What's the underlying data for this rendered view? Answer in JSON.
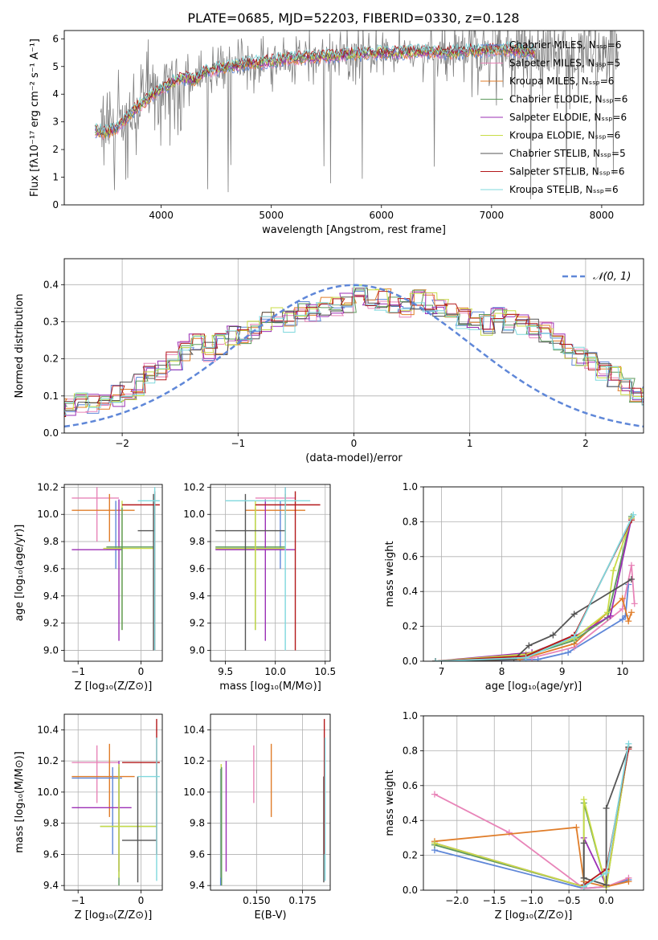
{
  "title": "PLATE=0685, MJD=52203, FIBERID=0330, z=0.128",
  "colors": {
    "Chabrier MILES": "#5f87d8",
    "Salpeter MILES": "#e884b8",
    "Kroupa MILES": "#e07d2a",
    "Chabrier ELODIE": "#5d9a5d",
    "Salpeter ELODIE": "#9b2fb5",
    "Kroupa ELODIE": "#c8dc46",
    "Chabrier STELIB": "#555555",
    "Salpeter STELIB": "#b3181a",
    "Kroupa STELIB": "#7fd8dd",
    "data": "#808080",
    "gauss": "#5f87d8"
  },
  "chart_data": [
    {
      "id": "spectrum",
      "type": "line",
      "xlabel": "wavelength [Angstrom, rest frame]",
      "ylabel": "Flux [fλ10⁻¹⁷ erg cm⁻² s⁻¹ A⁻¹]",
      "xlim": [
        3120,
        8380
      ],
      "ylim": [
        0,
        6.3
      ],
      "xticks": [
        4000,
        5000,
        6000,
        7000,
        8000
      ],
      "yticks": [
        0,
        1,
        2,
        3,
        4,
        5,
        6
      ],
      "grid": false,
      "legend": "top-right",
      "legend_entries": [
        "Chabrier MILES, Nₛₛₚ=6",
        "Salpeter MILES, Nₛₛₚ=5",
        "Kroupa MILES, Nₛₛₚ=6",
        "Chabrier ELODIE, Nₛₛₚ=6",
        "Salpeter ELODIE, Nₛₛₚ=6",
        "Kroupa ELODIE, Nₛₛₚ=6",
        "Chabrier STELIB, Nₛₛₚ=5",
        "Salpeter STELIB, Nₛₛₚ=6",
        "Kroupa STELIB, Nₛₛₚ=6"
      ],
      "legend_series": [
        "Chabrier MILES",
        "Salpeter MILES",
        "Kroupa MILES",
        "Chabrier ELODIE",
        "Salpeter ELODIE",
        "Kroupa ELODIE",
        "Chabrier STELIB",
        "Salpeter STELIB",
        "Kroupa STELIB"
      ],
      "continuum": {
        "x": [
          3400,
          3500,
          3600,
          3700,
          3800,
          3900,
          4000,
          4100,
          4200,
          4300,
          4400,
          4600,
          4800,
          5000,
          5200,
          5400,
          5600,
          5800,
          6000,
          6200,
          6400,
          6600,
          6800,
          7000,
          7200,
          7400
        ],
        "y": [
          2.7,
          2.6,
          2.8,
          3.2,
          3.6,
          3.9,
          4.2,
          4.4,
          4.6,
          4.5,
          4.8,
          5.0,
          5.1,
          5.2,
          5.3,
          5.35,
          5.4,
          5.45,
          5.5,
          5.5,
          5.55,
          5.5,
          5.55,
          5.6,
          5.6,
          5.5
        ]
      },
      "model_range": [
        3400,
        7400
      ],
      "data_range": [
        3450,
        8150
      ]
    },
    {
      "id": "residual-hist",
      "type": "line",
      "xlabel": "(data-model)/error",
      "ylabel": "Normed distribution",
      "xlim": [
        -2.5,
        2.5
      ],
      "ylim": [
        0,
        0.47
      ],
      "xticks": [
        -2,
        -1,
        0,
        1,
        2
      ],
      "yticks": [
        0.0,
        0.1,
        0.2,
        0.3,
        0.4
      ],
      "grid": true,
      "legend": "top-right",
      "gauss_label": "𝒩(0, 1)",
      "bin_width": 0.1,
      "hist_base": [
        0.04,
        0.05,
        0.06,
        0.07,
        0.07,
        0.07,
        0.08,
        0.08,
        0.09,
        0.1,
        0.11,
        0.13,
        0.16,
        0.17,
        0.2,
        0.22,
        0.24,
        0.22,
        0.24,
        0.26,
        0.27,
        0.28,
        0.3,
        0.31,
        0.3,
        0.33,
        0.32,
        0.34,
        0.34,
        0.35,
        0.37,
        0.36,
        0.36,
        0.35,
        0.34,
        0.36,
        0.35,
        0.34,
        0.33,
        0.31,
        0.3,
        0.29,
        0.31,
        0.3,
        0.29,
        0.28,
        0.27,
        0.25,
        0.23,
        0.21,
        0.19,
        0.17,
        0.15,
        0.13,
        0.11,
        0.1,
        0.09,
        0.08,
        0.07,
        0.06,
        0.05,
        0.05,
        0.05,
        0.04,
        0.04,
        0.04,
        0.03,
        0.03,
        0.03,
        0.04
      ]
    },
    {
      "id": "age-vs-Z",
      "type": "scatter",
      "xlabel": "Z [log₁₀(Z/Z⊙)]",
      "ylabel": "age  [log₁₀(age/yr)]",
      "xlim": [
        -1.22,
        0.34
      ],
      "ylim": [
        8.92,
        10.22
      ],
      "xticks": [
        -1,
        0
      ],
      "yticks": [
        9.0,
        9.2,
        9.4,
        9.6,
        9.8,
        10.0,
        10.2
      ],
      "grid": true,
      "points": [
        {
          "s": "Salpeter MILES",
          "x": -0.7,
          "xe": [
            -1.1,
            -0.35
          ],
          "y": 10.12,
          "ye": [
            9.8,
            10.2
          ]
        },
        {
          "s": "Kroupa MILES",
          "x": -0.5,
          "xe": [
            -1.1,
            -0.1
          ],
          "y": 10.03,
          "ye": [
            9.8,
            10.15
          ]
        },
        {
          "s": "Chabrier MILES",
          "x": -0.4,
          "xe": [
            -0.55,
            -0.3
          ],
          "y": 9.75,
          "ye": [
            9.6,
            10.1
          ]
        },
        {
          "s": "Salpeter ELODIE",
          "x": -0.35,
          "xe": [
            -1.1,
            -0.3
          ],
          "y": 9.74,
          "ye": [
            9.07,
            10.11
          ]
        },
        {
          "s": "Kroupa ELODIE",
          "x": -0.3,
          "xe": [
            -0.6,
            0.2
          ],
          "y": 9.75,
          "ye": [
            9.15,
            10.1
          ]
        },
        {
          "s": "Chabrier ELODIE",
          "x": -0.3,
          "xe": [
            -0.55,
            0.2
          ],
          "y": 9.76,
          "ye": [
            9.15,
            10.05
          ]
        },
        {
          "s": "Chabrier STELIB",
          "x": 0.2,
          "xe": [
            -0.05,
            0.22
          ],
          "y": 9.88,
          "ye": [
            9.0,
            10.15
          ]
        },
        {
          "s": "Salpeter STELIB",
          "x": 0.22,
          "xe": [
            -0.3,
            0.3
          ],
          "y": 10.07,
          "ye": [
            9.0,
            10.17
          ]
        },
        {
          "s": "Kroupa STELIB",
          "x": 0.22,
          "xe": [
            -0.05,
            0.3
          ],
          "y": 10.1,
          "ye": [
            9.0,
            10.2
          ]
        }
      ]
    },
    {
      "id": "age-vs-mass",
      "type": "scatter",
      "xlabel": "mass [log₁₀(M/M⊙)]",
      "ylabel": "",
      "xlim": [
        9.35,
        10.55
      ],
      "ylim": [
        8.92,
        10.22
      ],
      "xticks": [
        9.5,
        10.0,
        10.5
      ],
      "yticks": [
        9.0,
        9.2,
        9.4,
        9.6,
        9.8,
        10.0,
        10.2
      ],
      "grid": true,
      "points": [
        {
          "s": "Chabrier MILES",
          "x": 10.05,
          "xe": [
            9.4,
            10.08
          ],
          "y": 9.75,
          "ye": [
            9.6,
            10.1
          ]
        },
        {
          "s": "Salpeter MILES",
          "x": 10.1,
          "xe": [
            9.8,
            10.2
          ],
          "y": 10.12,
          "ye": [
            9.8,
            10.2
          ]
        },
        {
          "s": "Kroupa MILES",
          "x": 10.1,
          "xe": [
            9.7,
            10.3
          ],
          "y": 10.03,
          "ye": [
            9.8,
            10.15
          ]
        },
        {
          "s": "Chabrier ELODIE",
          "x": 9.8,
          "xe": [
            9.4,
            10.1
          ],
          "y": 9.76,
          "ye": [
            9.15,
            10.05
          ]
        },
        {
          "s": "Salpeter ELODIE",
          "x": 9.9,
          "xe": [
            9.4,
            10.2
          ],
          "y": 9.74,
          "ye": [
            9.07,
            10.11
          ]
        },
        {
          "s": "Kroupa ELODIE",
          "x": 9.8,
          "xe": [
            9.4,
            10.1
          ],
          "y": 9.75,
          "ye": [
            9.15,
            10.1
          ]
        },
        {
          "s": "Chabrier STELIB",
          "x": 9.7,
          "xe": [
            9.4,
            10.1
          ],
          "y": 9.88,
          "ye": [
            9.0,
            10.15
          ]
        },
        {
          "s": "Salpeter STELIB",
          "x": 10.2,
          "xe": [
            9.8,
            10.45
          ],
          "y": 10.07,
          "ye": [
            9.0,
            10.17
          ]
        },
        {
          "s": "Kroupa STELIB",
          "x": 10.1,
          "xe": [
            9.5,
            10.35
          ],
          "y": 10.1,
          "ye": [
            9.0,
            10.2
          ]
        }
      ]
    },
    {
      "id": "massweight-vs-age",
      "type": "line",
      "xlabel": "age  [log₁₀(age/yr)]",
      "ylabel": "mass weight",
      "xlim": [
        6.7,
        10.35
      ],
      "ylim": [
        0,
        1.0
      ],
      "xticks": [
        7,
        8,
        9,
        10
      ],
      "yticks": [
        0.0,
        0.2,
        0.4,
        0.6,
        0.8,
        1.0
      ],
      "grid": true,
      "series": [
        {
          "s": "Chabrier MILES",
          "x": [
            6.9,
            8.6,
            9.1,
            10.0,
            10.05,
            10.1
          ],
          "y": [
            0.0,
            0.01,
            0.05,
            0.24,
            0.26,
            0.44
          ]
        },
        {
          "s": "Salpeter MILES",
          "x": [
            6.9,
            8.5,
            9.2,
            10.0,
            10.15,
            10.2
          ],
          "y": [
            0.0,
            0.02,
            0.08,
            0.3,
            0.55,
            0.33
          ]
        },
        {
          "s": "Kroupa MILES",
          "x": [
            6.9,
            8.3,
            9.2,
            10.0,
            10.1,
            10.15
          ],
          "y": [
            0.0,
            0.01,
            0.1,
            0.36,
            0.23,
            0.28
          ]
        },
        {
          "s": "Chabrier ELODIE",
          "x": [
            6.9,
            8.4,
            9.2,
            9.75,
            10.15
          ],
          "y": [
            0.0,
            0.03,
            0.12,
            0.25,
            0.83
          ]
        },
        {
          "s": "Salpeter ELODIE",
          "x": [
            6.9,
            8.5,
            9.2,
            9.8,
            10.15
          ],
          "y": [
            0.0,
            0.05,
            0.14,
            0.26,
            0.82
          ]
        },
        {
          "s": "Kroupa ELODIE",
          "x": [
            6.9,
            8.4,
            9.2,
            9.75,
            9.85,
            10.15
          ],
          "y": [
            0.0,
            0.04,
            0.13,
            0.28,
            0.52,
            0.82
          ]
        },
        {
          "s": "Chabrier STELIB",
          "x": [
            6.9,
            8.2,
            8.45,
            8.85,
            9.2,
            10.15
          ],
          "y": [
            0.0,
            0.01,
            0.09,
            0.15,
            0.27,
            0.47
          ]
        },
        {
          "s": "Salpeter STELIB",
          "x": [
            6.9,
            8.4,
            9.2,
            10.15
          ],
          "y": [
            0.0,
            0.03,
            0.15,
            0.81
          ]
        },
        {
          "s": "Kroupa STELIB",
          "x": [
            6.9,
            8.4,
            9.2,
            10.18
          ],
          "y": [
            0.0,
            0.02,
            0.14,
            0.84
          ]
        }
      ]
    },
    {
      "id": "mass-vs-Z",
      "type": "scatter",
      "xlabel": "Z [log₁₀(Z/Z⊙)]",
      "ylabel": "mass [log₁₀(M/M⊙)]",
      "xlim": [
        -1.22,
        0.34
      ],
      "ylim": [
        9.37,
        10.5
      ],
      "xticks": [
        -1,
        0
      ],
      "yticks": [
        9.4,
        9.6,
        9.8,
        10.0,
        10.2,
        10.4
      ],
      "grid": true,
      "points": [
        {
          "s": "Salpeter MILES",
          "x": -0.7,
          "xe": [
            -1.1,
            -0.35
          ],
          "y": 10.19,
          "ye": [
            9.93,
            10.3
          ]
        },
        {
          "s": "Kroupa MILES",
          "x": -0.5,
          "xe": [
            -1.1,
            -0.1
          ],
          "y": 10.1,
          "ye": [
            9.84,
            10.31
          ]
        },
        {
          "s": "Chabrier MILES",
          "x": -0.45,
          "xe": [
            -1.1,
            -0.3
          ],
          "y": 10.09,
          "ye": [
            9.6,
            10.16
          ]
        },
        {
          "s": "Salpeter ELODIE",
          "x": -0.35,
          "xe": [
            -1.1,
            -0.15
          ],
          "y": 9.9,
          "ye": [
            9.49,
            10.2
          ]
        },
        {
          "s": "Chabrier ELODIE",
          "x": -0.35,
          "xe": [
            -0.65,
            0.25
          ],
          "y": 9.78,
          "ye": [
            9.4,
            10.16
          ]
        },
        {
          "s": "Kroupa ELODIE",
          "x": -0.35,
          "xe": [
            -0.65,
            0.25
          ],
          "y": 9.78,
          "ye": [
            9.45,
            10.18
          ]
        },
        {
          "s": "Chabrier STELIB",
          "x": -0.05,
          "xe": [
            -0.3,
            0.25
          ],
          "y": 9.69,
          "ye": [
            9.42,
            10.1
          ]
        },
        {
          "s": "Salpeter STELIB",
          "x": 0.25,
          "xe": [
            -0.3,
            0.3
          ],
          "y": 10.19,
          "ye": [
            9.6,
            10.47
          ]
        },
        {
          "s": "Kroupa STELIB",
          "x": 0.25,
          "xe": [
            -0.05,
            0.3
          ],
          "y": 10.1,
          "ye": [
            9.43,
            10.35
          ]
        }
      ]
    },
    {
      "id": "mass-vs-EBV",
      "type": "scatter",
      "xlabel": "E(B-V)",
      "ylabel": "",
      "xlim": [
        0.125,
        0.19
      ],
      "ylim": [
        9.37,
        10.5
      ],
      "xticks": [
        0.15,
        0.175
      ],
      "yticks": [
        9.4,
        9.6,
        9.8,
        10.0,
        10.2,
        10.4
      ],
      "grid": true,
      "points": [
        {
          "s": "Chabrier MILES",
          "x": 0.1305,
          "ye": [
            9.4,
            10.15
          ]
        },
        {
          "s": "Kroupa ELODIE",
          "x": 0.1308,
          "ye": [
            9.45,
            10.18
          ]
        },
        {
          "s": "Chabrier ELODIE",
          "x": 0.131,
          "ye": [
            9.4,
            10.16
          ]
        },
        {
          "s": "Salpeter ELODIE",
          "x": 0.1335,
          "ye": [
            9.49,
            10.2
          ]
        },
        {
          "s": "Salpeter MILES",
          "x": 0.1485,
          "ye": [
            9.93,
            10.3
          ]
        },
        {
          "s": "Kroupa MILES",
          "x": 0.158,
          "ye": [
            9.84,
            10.31
          ]
        },
        {
          "s": "Chabrier STELIB",
          "x": 0.1865,
          "ye": [
            9.42,
            10.1
          ]
        },
        {
          "s": "Salpeter STELIB",
          "x": 0.1868,
          "ye": [
            9.6,
            10.47
          ]
        },
        {
          "s": "Kroupa STELIB",
          "x": 0.1872,
          "ye": [
            9.43,
            10.35
          ]
        }
      ]
    },
    {
      "id": "massweight-vs-Z",
      "type": "line",
      "xlabel": "Z [log₁₀(Z/Z⊙)]",
      "ylabel": "mass weight",
      "xlim": [
        -2.45,
        0.5
      ],
      "ylim": [
        0,
        1.0
      ],
      "xticks": [
        -2.0,
        -1.5,
        -1.0,
        -0.5,
        0.0
      ],
      "yticks": [
        0.0,
        0.2,
        0.4,
        0.6,
        0.8,
        1.0
      ],
      "grid": true,
      "series": [
        {
          "s": "Chabrier MILES",
          "x": [
            -2.3,
            -0.3,
            0.0,
            0.3
          ],
          "y": [
            0.23,
            0.01,
            0.02,
            0.06
          ]
        },
        {
          "s": "Salpeter MILES",
          "x": [
            -2.3,
            -1.3,
            -0.3,
            0.0,
            0.3
          ],
          "y": [
            0.55,
            0.33,
            0.01,
            0.02,
            0.07
          ]
        },
        {
          "s": "Kroupa MILES",
          "x": [
            -2.3,
            -0.4,
            -0.3,
            0.0,
            0.3
          ],
          "y": [
            0.28,
            0.36,
            0.05,
            0.02,
            0.05
          ]
        },
        {
          "s": "Chabrier ELODIE",
          "x": [
            -2.3,
            -0.3,
            -0.3,
            0.0,
            0.3
          ],
          "y": [
            0.26,
            0.02,
            0.5,
            0.02,
            0.82
          ]
        },
        {
          "s": "Salpeter ELODIE",
          "x": [
            -2.3,
            -0.3,
            -0.3,
            0.0,
            0.3
          ],
          "y": [
            0.27,
            0.02,
            0.3,
            0.03,
            0.82
          ]
        },
        {
          "s": "Kroupa ELODIE",
          "x": [
            -2.3,
            -0.3,
            -0.3,
            0.0,
            0.3
          ],
          "y": [
            0.27,
            0.02,
            0.52,
            0.02,
            0.82
          ]
        },
        {
          "s": "Chabrier STELIB",
          "x": [
            -0.3,
            -0.3,
            0.0,
            0.0,
            0.3
          ],
          "y": [
            0.27,
            0.07,
            0.03,
            0.47,
            0.82
          ]
        },
        {
          "s": "Salpeter STELIB",
          "x": [
            -0.3,
            0.0,
            0.3
          ],
          "y": [
            0.03,
            0.12,
            0.81
          ]
        },
        {
          "s": "Kroupa STELIB",
          "x": [
            -0.3,
            0.0,
            0.3
          ],
          "y": [
            0.02,
            0.1,
            0.84
          ]
        }
      ]
    }
  ]
}
